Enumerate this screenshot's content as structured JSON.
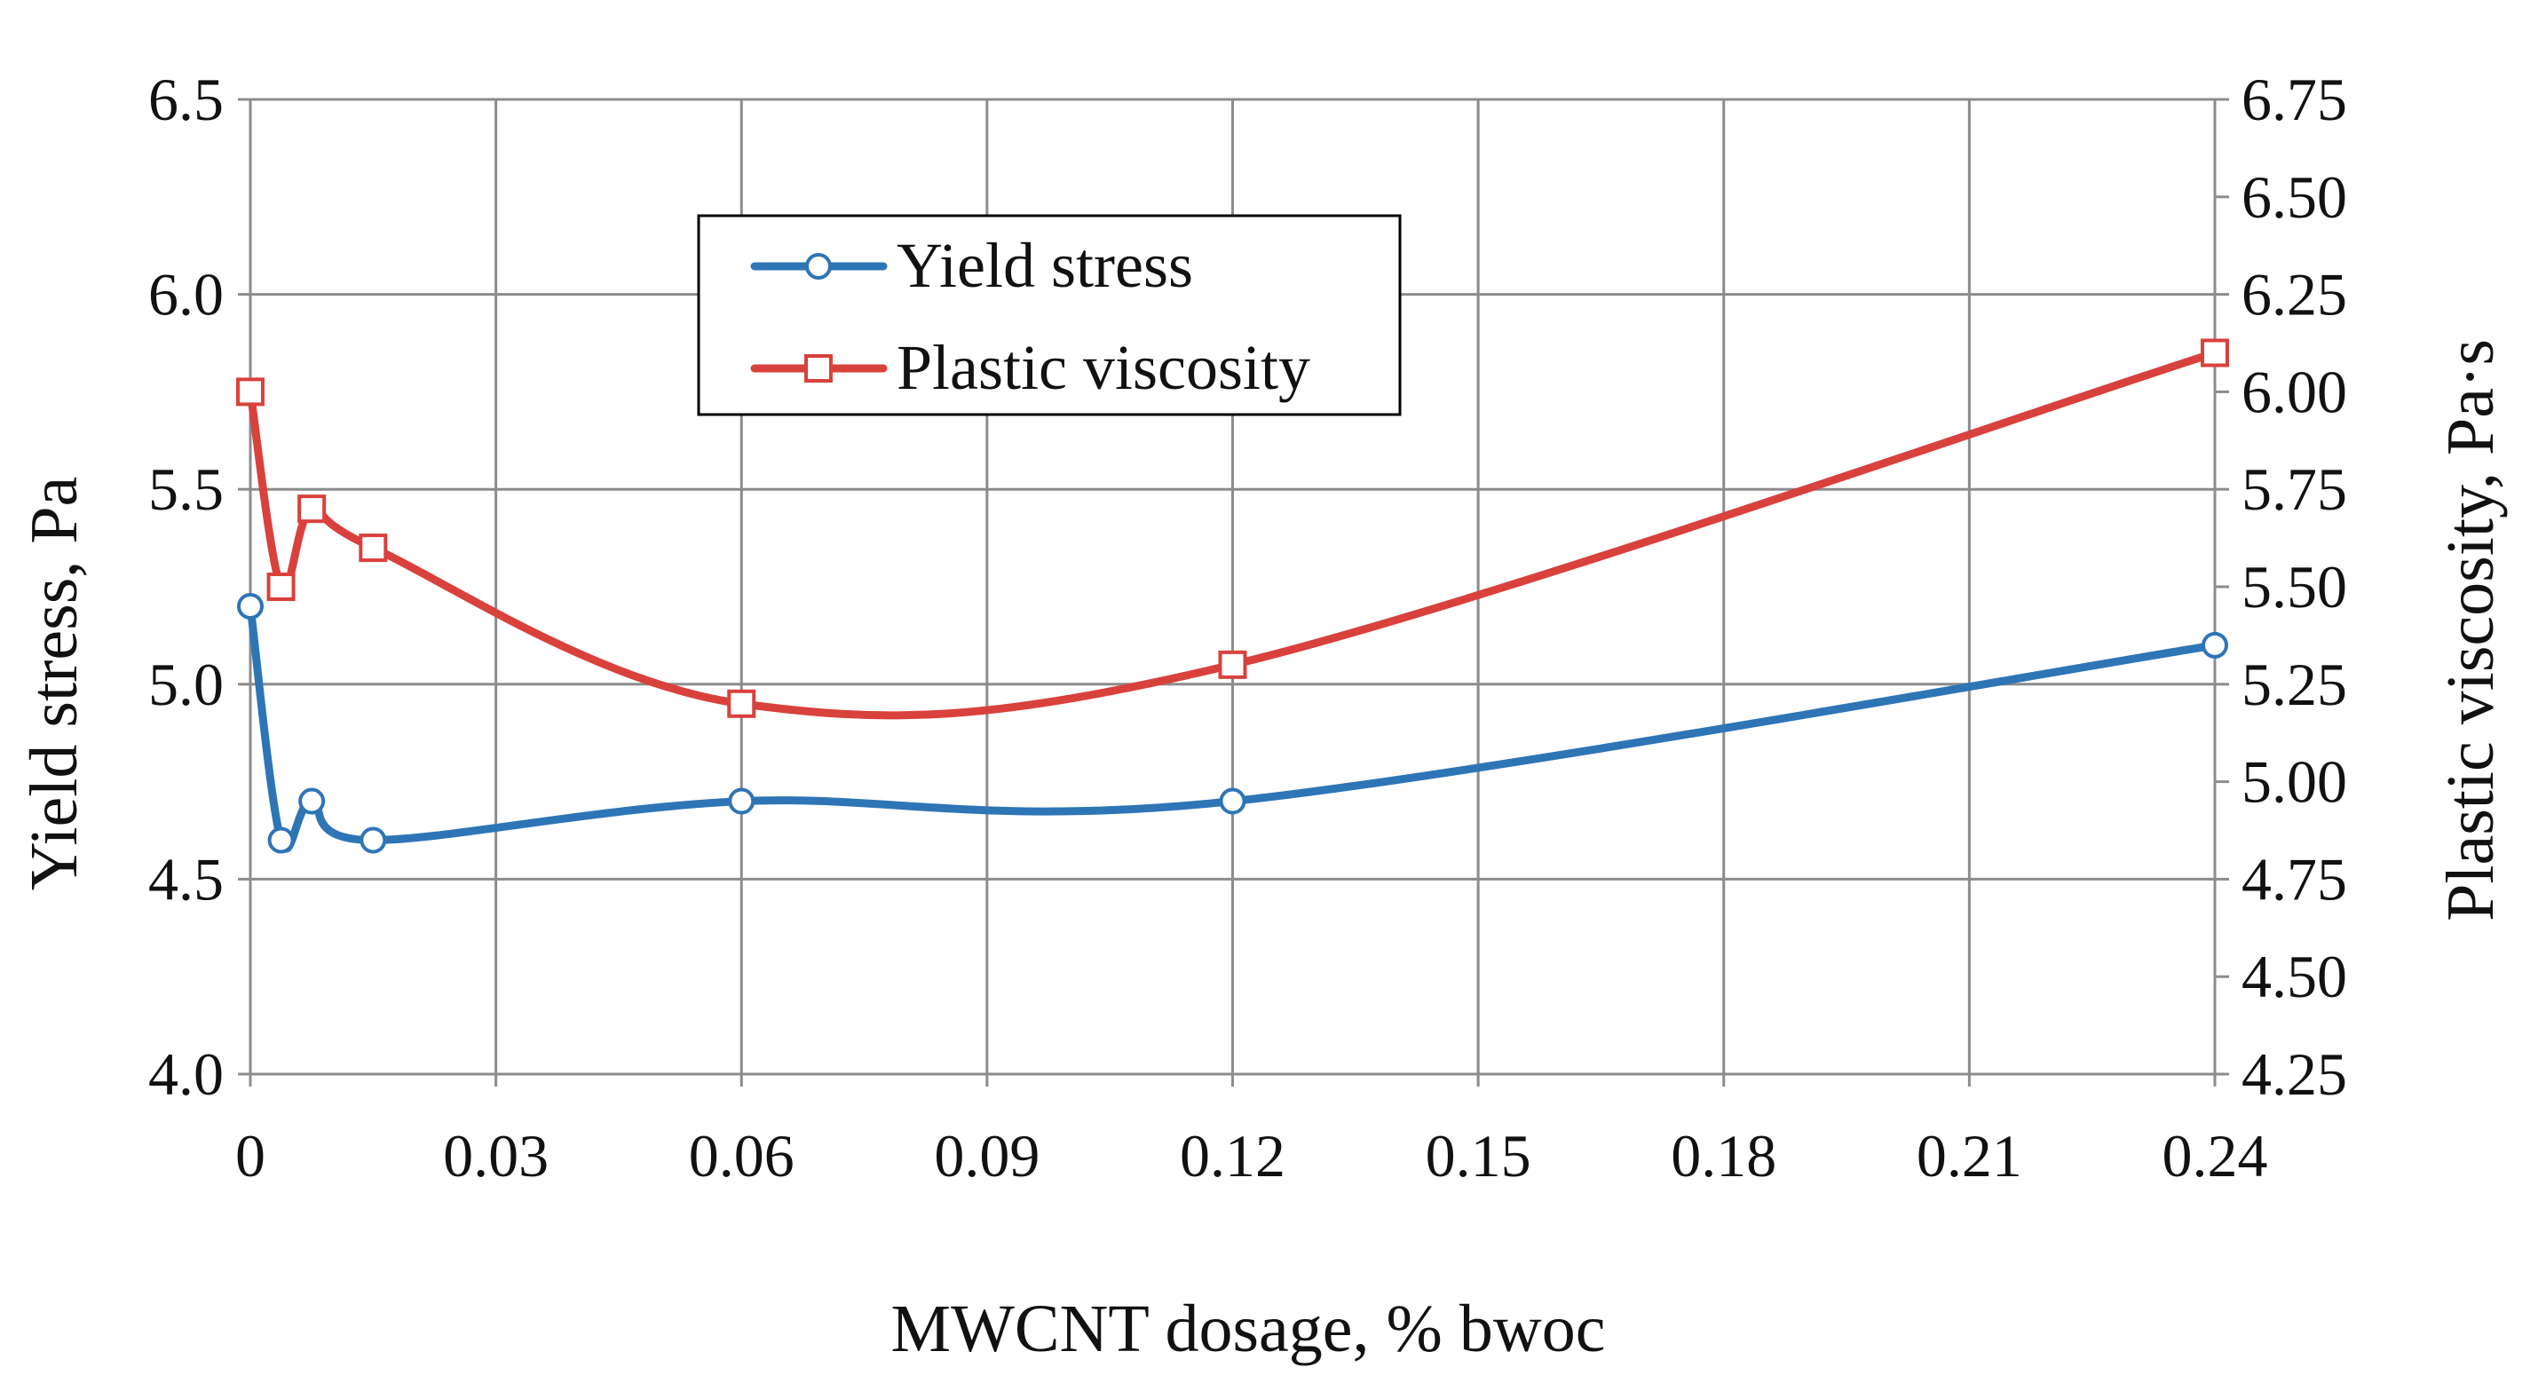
{
  "chart_data": {
    "type": "line",
    "title": "",
    "xlabel": "MWCNT dosage, % bwoc",
    "ylabel_left": "Yield stress, Pa",
    "ylabel_right": "Plastic viscosity, Pa·s",
    "xlim": [
      0,
      0.24
    ],
    "ylim_left": [
      4.0,
      6.5
    ],
    "ylim_right": [
      4.25,
      6.75
    ],
    "x_ticks": [
      "0",
      "0.03",
      "0.06",
      "0.09",
      "0.12",
      "0.15",
      "0.18",
      "0.21",
      "0.24"
    ],
    "y_left_ticks": [
      "4.0",
      "4.5",
      "5.0",
      "5.5",
      "6.0",
      "6.5"
    ],
    "y_right_ticks": [
      "4.25",
      "4.50",
      "4.75",
      "5.00",
      "5.25",
      "5.50",
      "5.75",
      "6.00",
      "6.25",
      "6.50",
      "6.75"
    ],
    "grid": true,
    "legend_position": "top-center",
    "series": [
      {
        "name": "Yield stress",
        "axis": "left",
        "color": "#2e75b6",
        "marker": "circle",
        "x": [
          0,
          0.00375,
          0.0075,
          0.015,
          0.06,
          0.12,
          0.24
        ],
        "values": [
          5.2,
          4.6,
          4.7,
          4.6,
          4.7,
          4.7,
          5.1
        ]
      },
      {
        "name": "Plastic viscosity",
        "axis": "right",
        "color": "#d9413c",
        "marker": "square",
        "x": [
          0,
          0.00375,
          0.0075,
          0.015,
          0.06,
          0.12,
          0.24
        ],
        "values": [
          6.0,
          5.5,
          5.7,
          5.6,
          5.2,
          5.3,
          6.1
        ]
      }
    ]
  }
}
